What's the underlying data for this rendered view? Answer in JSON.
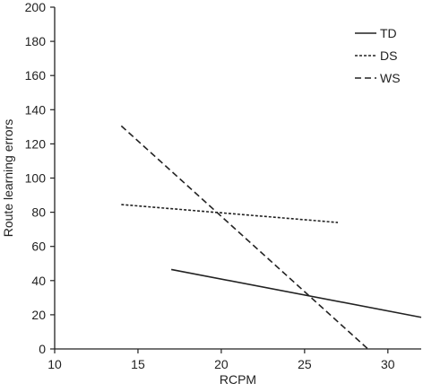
{
  "chart_data": {
    "type": "line",
    "title": "",
    "xlabel": "RCPM",
    "ylabel": "Route learning errors",
    "xlim": [
      10,
      32
    ],
    "ylim": [
      0,
      200
    ],
    "xticks": [
      10,
      15,
      20,
      25,
      30
    ],
    "yticks": [
      0,
      20,
      40,
      60,
      80,
      100,
      120,
      140,
      160,
      180,
      200
    ],
    "grid": false,
    "legend_position": "top-right",
    "series": [
      {
        "name": "TD",
        "style": "solid",
        "color": "#222222",
        "x": [
          17,
          32
        ],
        "y": [
          46.5,
          18.5
        ]
      },
      {
        "name": "DS",
        "style": "dotted",
        "color": "#222222",
        "x": [
          14,
          27
        ],
        "y": [
          84.5,
          74
        ]
      },
      {
        "name": "WS",
        "style": "dashed",
        "color": "#222222",
        "x": [
          14,
          28.8
        ],
        "y": [
          130.5,
          0
        ]
      }
    ]
  }
}
